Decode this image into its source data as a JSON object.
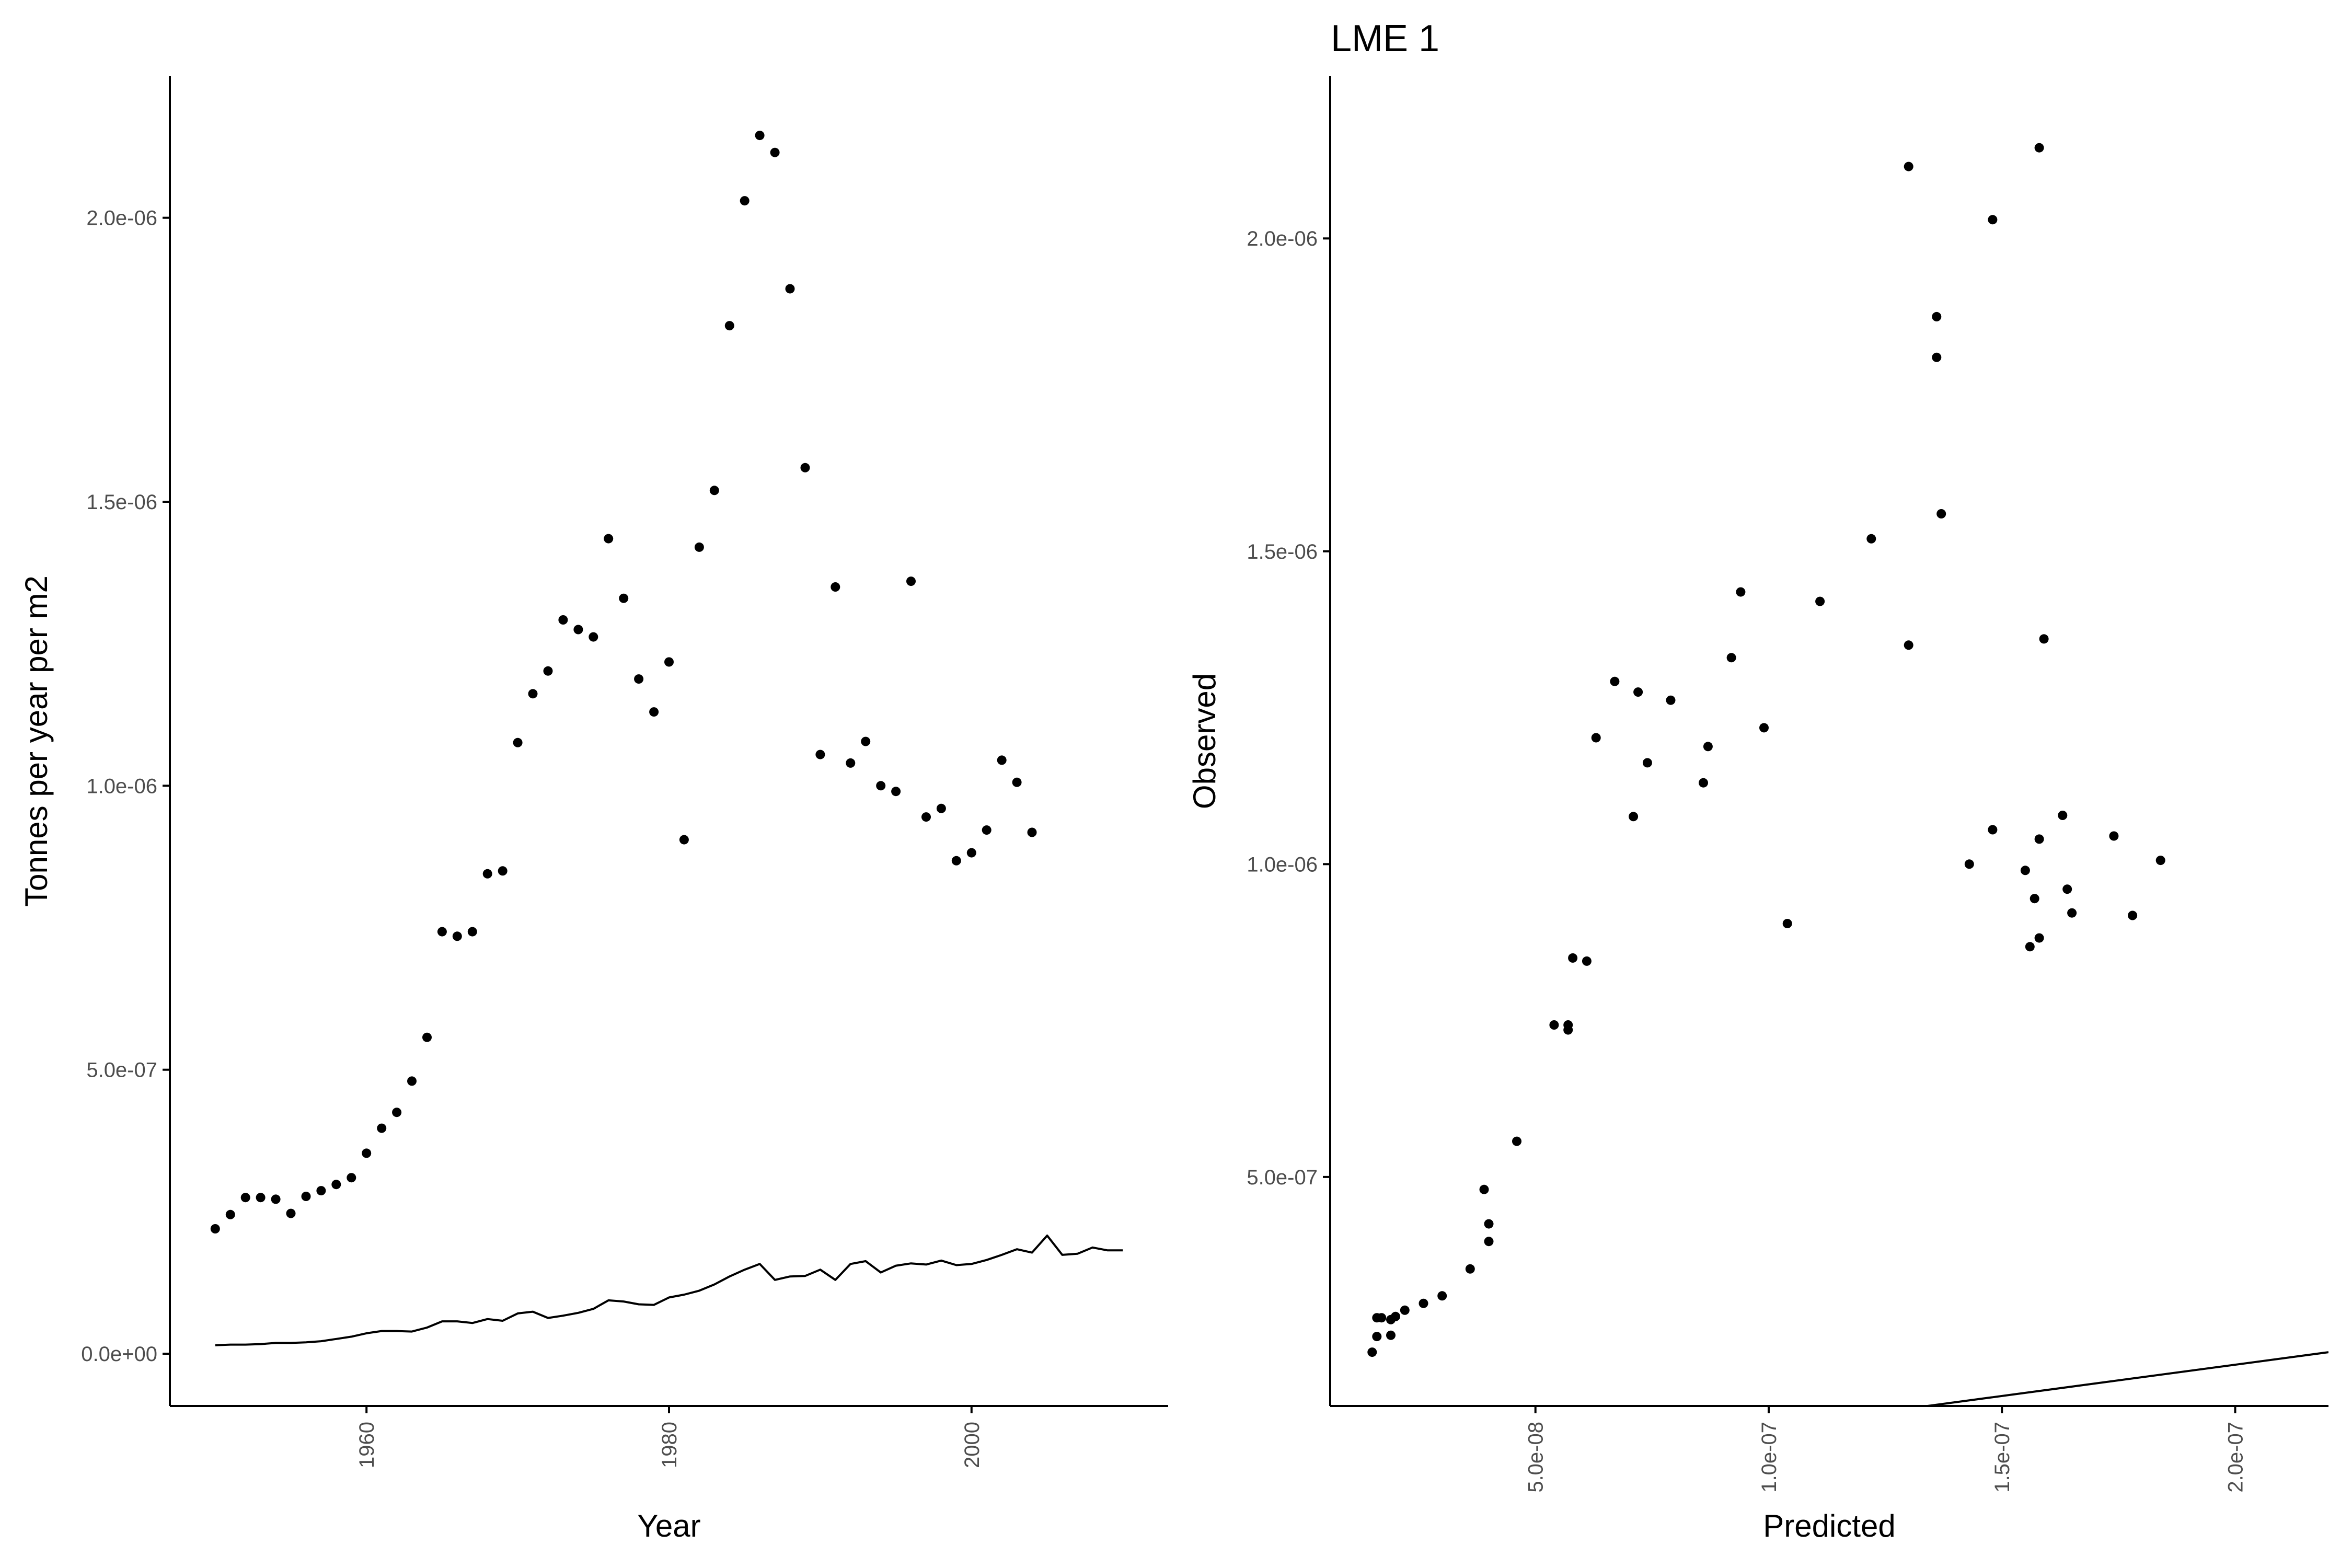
{
  "title": "LME 1",
  "colors": {
    "points": "#000000",
    "line": "#000000",
    "axis": "#000000",
    "tick_text": "#4d4d4d",
    "background": "#ffffff"
  },
  "chart_data": [
    {
      "type": "scatter",
      "panel": "left",
      "xlabel": "Year",
      "ylabel": "Tonnes per year per m2",
      "xlim": [
        1947,
        2013
      ],
      "ylim": [
        -9.2e-08,
        2.25e-06
      ],
      "x_ticks": [
        1960,
        1980,
        2000
      ],
      "x_tick_labels": [
        "1960",
        "1980",
        "2000"
      ],
      "y_ticks": [
        0,
        5e-07,
        1e-06,
        1.5e-06,
        2e-06
      ],
      "y_tick_labels": [
        "0.0e+00",
        "5.0e-07",
        "1.0e-06",
        "1.5e-06",
        "2.0e-06"
      ],
      "grid": false,
      "series": [
        {
          "mark": "point",
          "points": [
            [
              1950,
              2.2e-07
            ],
            [
              1951,
              2.45e-07
            ],
            [
              1952,
              2.75e-07
            ],
            [
              1953,
              2.75e-07
            ],
            [
              1954,
              2.72e-07
            ],
            [
              1955,
              2.47e-07
            ],
            [
              1956,
              2.77e-07
            ],
            [
              1957,
              2.87e-07
            ],
            [
              1958,
              2.98e-07
            ],
            [
              1959,
              3.1e-07
            ],
            [
              1960,
              3.53e-07
            ],
            [
              1961,
              3.97e-07
            ],
            [
              1962,
              4.25e-07
            ],
            [
              1963,
              4.8e-07
            ],
            [
              1964,
              5.57e-07
            ],
            [
              1965,
              7.43e-07
            ],
            [
              1966,
              7.35e-07
            ],
            [
              1967,
              7.43e-07
            ],
            [
              1968,
              8.45e-07
            ],
            [
              1969,
              8.5e-07
            ],
            [
              1970,
              1.076e-06
            ],
            [
              1971,
              1.162e-06
            ],
            [
              1972,
              1.202e-06
            ],
            [
              1973,
              1.292e-06
            ],
            [
              1974,
              1.275e-06
            ],
            [
              1975,
              1.262e-06
            ],
            [
              1976,
              1.435e-06
            ],
            [
              1977,
              1.33e-06
            ],
            [
              1978,
              1.188e-06
            ],
            [
              1979,
              1.13e-06
            ],
            [
              1980,
              1.218e-06
            ],
            [
              1981,
              9.05e-07
            ],
            [
              1982,
              1.42e-06
            ],
            [
              1983,
              1.52e-06
            ],
            [
              1984,
              1.81e-06
            ],
            [
              1985,
              2.03e-06
            ],
            [
              1986,
              2.145e-06
            ],
            [
              1987,
              2.115e-06
            ],
            [
              1988,
              1.875e-06
            ],
            [
              1989,
              1.56e-06
            ],
            [
              1990,
              1.055e-06
            ],
            [
              1991,
              1.35e-06
            ],
            [
              1992,
              1.04e-06
            ],
            [
              1993,
              1.078e-06
            ],
            [
              1994,
              1e-06
            ],
            [
              1995,
              9.9e-07
            ],
            [
              1996,
              1.36e-06
            ],
            [
              1997,
              9.45e-07
            ],
            [
              1998,
              9.6e-07
            ],
            [
              1999,
              8.68e-07
            ],
            [
              2000,
              8.82e-07
            ],
            [
              2001,
              9.22e-07
            ],
            [
              2002,
              1.045e-06
            ],
            [
              2003,
              1.006e-06
            ],
            [
              2004,
              9.18e-07
            ]
          ]
        },
        {
          "mark": "line",
          "points": [
            [
              1950,
              1.5e-08
            ],
            [
              1951,
              1.6e-08
            ],
            [
              1952,
              1.6e-08
            ],
            [
              1953,
              1.7e-08
            ],
            [
              1954,
              1.9e-08
            ],
            [
              1955,
              1.9e-08
            ],
            [
              1956,
              2e-08
            ],
            [
              1957,
              2.2e-08
            ],
            [
              1958,
              2.6e-08
            ],
            [
              1959,
              3e-08
            ],
            [
              1960,
              3.6e-08
            ],
            [
              1961,
              4e-08
            ],
            [
              1962,
              4e-08
            ],
            [
              1963,
              3.9e-08
            ],
            [
              1964,
              4.6e-08
            ],
            [
              1965,
              5.7e-08
            ],
            [
              1966,
              5.7e-08
            ],
            [
              1967,
              5.4e-08
            ],
            [
              1968,
              6.1e-08
            ],
            [
              1969,
              5.8e-08
            ],
            [
              1970,
              7.1e-08
            ],
            [
              1971,
              7.4e-08
            ],
            [
              1972,
              6.3e-08
            ],
            [
              1973,
              6.7e-08
            ],
            [
              1974,
              7.2e-08
            ],
            [
              1975,
              7.9e-08
            ],
            [
              1976,
              9.4e-08
            ],
            [
              1977,
              9.2e-08
            ],
            [
              1978,
              8.7e-08
            ],
            [
              1979,
              8.6e-08
            ],
            [
              1980,
              9.9e-08
            ],
            [
              1981,
              1.04e-07
            ],
            [
              1982,
              1.11e-07
            ],
            [
              1983,
              1.22e-07
            ],
            [
              1984,
              1.36e-07
            ],
            [
              1985,
              1.48e-07
            ],
            [
              1986,
              1.58e-07
            ],
            [
              1987,
              1.3e-07
            ],
            [
              1988,
              1.36e-07
            ],
            [
              1989,
              1.37e-07
            ],
            [
              1990,
              1.48e-07
            ],
            [
              1991,
              1.3e-07
            ],
            [
              1992,
              1.58e-07
            ],
            [
              1993,
              1.63e-07
            ],
            [
              1994,
              1.43e-07
            ],
            [
              1995,
              1.55e-07
            ],
            [
              1996,
              1.59e-07
            ],
            [
              1997,
              1.57e-07
            ],
            [
              1998,
              1.64e-07
            ],
            [
              1999,
              1.56e-07
            ],
            [
              2000,
              1.58e-07
            ],
            [
              2001,
              1.65e-07
            ],
            [
              2002,
              1.74e-07
            ],
            [
              2003,
              1.84e-07
            ],
            [
              2004,
              1.78e-07
            ],
            [
              2005,
              2.08e-07
            ],
            [
              2006,
              1.74e-07
            ],
            [
              2007,
              1.76e-07
            ],
            [
              2008,
              1.87e-07
            ],
            [
              2009,
              1.82e-07
            ],
            [
              2010,
              1.82e-07
            ]
          ]
        }
      ]
    },
    {
      "type": "scatter",
      "panel": "right",
      "xlabel": "Predicted",
      "ylabel": "Observed",
      "xlim": [
        6e-09,
        2.2e-07
      ],
      "ylim": [
        1.34e-07,
        2.26e-06
      ],
      "x_ticks": [
        5e-08,
        1e-07,
        1.5e-07,
        2e-07
      ],
      "x_tick_labels": [
        "5.0e-08",
        "1.0e-07",
        "1.5e-07",
        "2.0e-07"
      ],
      "y_ticks": [
        5e-07,
        1e-06,
        1.5e-06,
        2e-06
      ],
      "y_tick_labels": [
        "5.0e-07",
        "1.0e-06",
        "1.5e-06",
        "2.0e-06"
      ],
      "grid": false,
      "series": [
        {
          "mark": "point",
          "points": [
            [
              1.5e-08,
              2.2e-07
            ],
            [
              1.6e-08,
              2.45e-07
            ],
            [
              1.6e-08,
              2.75e-07
            ],
            [
              1.7e-08,
              2.75e-07
            ],
            [
              1.9e-08,
              2.72e-07
            ],
            [
              1.9e-08,
              2.47e-07
            ],
            [
              2e-08,
              2.77e-07
            ],
            [
              2.2e-08,
              2.87e-07
            ],
            [
              2.6e-08,
              2.98e-07
            ],
            [
              3e-08,
              3.1e-07
            ],
            [
              3.6e-08,
              3.53e-07
            ],
            [
              4e-08,
              3.97e-07
            ],
            [
              4e-08,
              4.25e-07
            ],
            [
              3.9e-08,
              4.8e-07
            ],
            [
              4.6e-08,
              5.57e-07
            ],
            [
              5.7e-08,
              7.43e-07
            ],
            [
              5.7e-08,
              7.35e-07
            ],
            [
              5.4e-08,
              7.43e-07
            ],
            [
              6.1e-08,
              8.45e-07
            ],
            [
              5.8e-08,
              8.5e-07
            ],
            [
              7.1e-08,
              1.076e-06
            ],
            [
              7.4e-08,
              1.162e-06
            ],
            [
              6.3e-08,
              1.202e-06
            ],
            [
              6.7e-08,
              1.292e-06
            ],
            [
              7.2e-08,
              1.275e-06
            ],
            [
              7.9e-08,
              1.262e-06
            ],
            [
              9.4e-08,
              1.435e-06
            ],
            [
              9.2e-08,
              1.33e-06
            ],
            [
              8.7e-08,
              1.188e-06
            ],
            [
              8.6e-08,
              1.13e-06
            ],
            [
              9.9e-08,
              1.218e-06
            ],
            [
              1.04e-07,
              9.05e-07
            ],
            [
              1.11e-07,
              1.42e-06
            ],
            [
              1.22e-07,
              1.52e-06
            ],
            [
              1.36e-07,
              1.81e-06
            ],
            [
              1.48e-07,
              2.03e-06
            ],
            [
              1.58e-07,
              2.145e-06
            ],
            [
              1.3e-07,
              2.115e-06
            ],
            [
              1.36e-07,
              1.875e-06
            ],
            [
              1.37e-07,
              1.56e-06
            ],
            [
              1.48e-07,
              1.055e-06
            ],
            [
              1.3e-07,
              1.35e-06
            ],
            [
              1.58e-07,
              1.04e-06
            ],
            [
              1.63e-07,
              1.078e-06
            ],
            [
              1.43e-07,
              1e-06
            ],
            [
              1.55e-07,
              9.9e-07
            ],
            [
              1.59e-07,
              1.36e-06
            ],
            [
              1.57e-07,
              9.45e-07
            ],
            [
              1.64e-07,
              9.6e-07
            ],
            [
              1.56e-07,
              8.68e-07
            ],
            [
              1.58e-07,
              8.82e-07
            ],
            [
              1.65e-07,
              9.22e-07
            ],
            [
              1.74e-07,
              1.045e-06
            ],
            [
              1.84e-07,
              1.006e-06
            ],
            [
              1.78e-07,
              9.18e-07
            ]
          ]
        },
        {
          "mark": "line",
          "note": "identity line y = x",
          "points": [
            [
              0,
              0
            ],
            [
              2.2e-07,
              2.2e-07
            ]
          ]
        }
      ]
    }
  ]
}
